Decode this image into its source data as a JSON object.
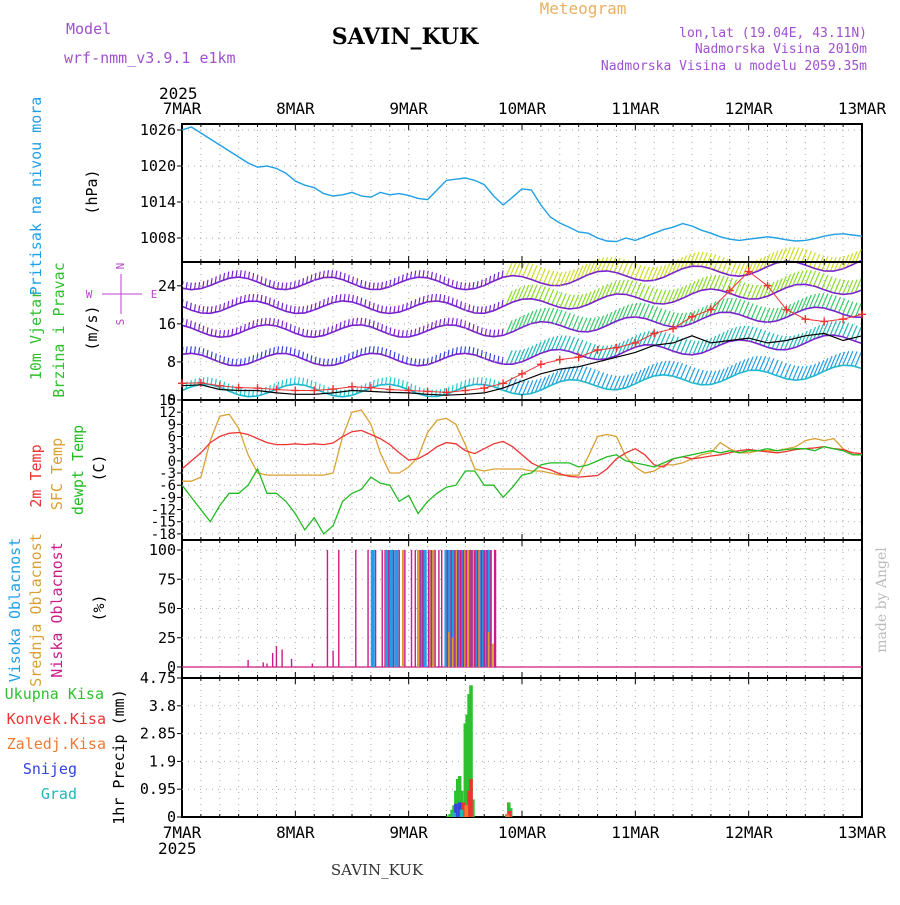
{
  "header": {
    "model_label": "Model",
    "model_name": "wrf-nmm_v3.9.1 e1km",
    "station": "SAVIN_KUK",
    "meteogram": "Meteogram",
    "lonlat": "lon,lat (19.04E, 43.11N)",
    "elevation": "Nadmorska Visina 2010m",
    "elevation_model": "Nadmorska Visina u modelu 2059.35m"
  },
  "time_axis": {
    "year": "2025",
    "labels": [
      "7MAR",
      "8MAR",
      "9MAR",
      "10MAR",
      "11MAR",
      "12MAR",
      "13MAR"
    ]
  },
  "footer": {
    "station": "SAVIN_KUK",
    "credit": "made by Angel"
  },
  "colors": {
    "pressure": "#1fa0e6",
    "temp2m": "#ee3333",
    "sfc": "#d9a033",
    "dew": "#22bb22",
    "visoka": "#1f9fe6",
    "srednja": "#d9a033",
    "niska": "#cc1a88",
    "ukupna": "#2ec02e",
    "konvek": "#ee3333",
    "zaledj": "#f07a30",
    "snijeg": "#3344dd",
    "grad": "#1fb8b8",
    "wind_compass": "#bb44cc",
    "header_purple": "#a050d0",
    "header_orange": "#e8b060"
  },
  "panels": {
    "pressure": {
      "label": "Pritisak na nivou mora",
      "unit": "(hPa)",
      "ticks": [
        "1026",
        "1020",
        "1014",
        "1008"
      ]
    },
    "wind": {
      "label1": "10m Vjetar",
      "label2": "Brzina i Pravac",
      "unit": "(m/s)",
      "ticks": [
        "24",
        "16",
        "8",
        "0"
      ],
      "compass": [
        "N",
        "S",
        "W",
        "E"
      ]
    },
    "temp": {
      "label1": "2m Temp",
      "label2": "SFC Temp",
      "label3": "dewpt Temp",
      "unit": "(C)",
      "ticks": [
        "15",
        "12",
        "9",
        "6",
        "3",
        "0",
        "-3",
        "-6",
        "-9",
        "-12",
        "-15",
        "-18"
      ]
    },
    "cloud": {
      "label1": "Visoka Oblacnost",
      "label2": "Srednja Oblacnost",
      "label3": "Niska Oblacnost",
      "unit": "(%)",
      "ticks": [
        "100",
        "75",
        "50",
        "25",
        "0"
      ]
    },
    "precip": {
      "labels": [
        "Ukupna Kisa",
        "Konvek.Kisa",
        "Zaledj.Kisa",
        "Snijeg",
        "Grad"
      ],
      "axis_label": "1hr Precip (mm)",
      "ticks": [
        "4.75",
        "3.8",
        "2.85",
        "1.9",
        "0.95",
        "0"
      ]
    }
  },
  "chart_data": [
    {
      "type": "line",
      "panel": "pressure",
      "ylabel": "(hPa)",
      "ylim": [
        1004,
        1027
      ],
      "x": [
        0,
        0.5,
        1,
        1.5,
        2,
        2.5,
        3,
        3.5,
        4,
        4.5,
        5,
        5.5,
        6,
        6.5,
        7,
        7.5,
        8,
        8.5,
        9,
        9.5,
        10,
        10.5,
        11,
        11.5,
        12,
        12.5,
        13,
        13.5,
        14,
        14.5,
        15,
        15.5,
        16,
        16.5,
        17,
        17.5,
        18,
        18.5,
        19,
        19.5,
        20,
        20.5,
        21,
        21.5,
        22,
        22.5,
        23,
        23.5,
        24,
        24.5,
        25,
        25.5,
        26,
        26.5,
        27,
        27.5,
        28,
        28.5,
        29,
        29.5,
        30,
        30.5,
        31,
        31.5,
        32,
        32.5,
        33,
        33.5,
        34,
        34.5,
        35,
        35.5,
        36
      ],
      "series": [
        {
          "values": [
            1026.0,
            1026.5,
            1025.5,
            1024.5,
            1023.5,
            1022.5,
            1021.5,
            1020.5,
            1019.8,
            1020.0,
            1019.6,
            1018.8,
            1017.5,
            1016.8,
            1016.4,
            1015.4,
            1015.0,
            1015.2,
            1015.6,
            1015.0,
            1014.8,
            1015.6,
            1015.2,
            1015.4,
            1015.1,
            1014.6,
            1014.4,
            1016.0,
            1017.6,
            1017.8,
            1018.0,
            1017.6,
            1016.9,
            1015.0,
            1013.5,
            1014.8,
            1016.2,
            1016.0,
            1013.5,
            1011.5,
            1010.5,
            1009.8,
            1009.0,
            1008.8,
            1008.0,
            1007.5,
            1007.4,
            1008.0,
            1007.6,
            1008.2,
            1008.8,
            1009.4,
            1009.8,
            1010.4,
            1010.0,
            1009.3,
            1008.8,
            1008.2,
            1007.8,
            1007.6,
            1007.8,
            1008.0,
            1008.2,
            1008.0,
            1007.7,
            1007.5,
            1007.6,
            1007.9,
            1008.3,
            1008.6,
            1008.7,
            1008.5,
            1008.3
          ]
        }
      ]
    },
    {
      "type": "line",
      "panel": "wind",
      "ylabel": "(m/s)",
      "ylim": [
        0,
        29
      ],
      "x": [
        0,
        1,
        2,
        3,
        4,
        5,
        6,
        7,
        8,
        9,
        10,
        11,
        12,
        13,
        14,
        15,
        16,
        17,
        18,
        19,
        20,
        21,
        22,
        23,
        24,
        25,
        26,
        27,
        28,
        29,
        30,
        31,
        32,
        33,
        34,
        35,
        36
      ],
      "series": [
        {
          "values": [
            3.0,
            3.2,
            2.2,
            2.0,
            2.0,
            1.5,
            1.2,
            1.2,
            1.5,
            2.0,
            1.8,
            1.6,
            1.5,
            1.2,
            1.0,
            1.2,
            1.5,
            2.5,
            4.0,
            5.5,
            6.5,
            7.0,
            8.0,
            9.0,
            10.0,
            11.5,
            12.0,
            13.5,
            12.0,
            12.5,
            13.0,
            12.0,
            12.5,
            13.5,
            14.0,
            12.5,
            13.5
          ]
        },
        {
          "values": [
            3.5,
            3.6,
            3.0,
            2.6,
            2.5,
            2.2,
            2.0,
            2.0,
            2.3,
            2.8,
            2.6,
            2.2,
            2.0,
            1.8,
            1.6,
            2.0,
            2.5,
            3.5,
            5.5,
            7.5,
            8.5,
            9.0,
            10.5,
            11.0,
            12.0,
            14.0,
            15.0,
            17.5,
            19.0,
            23.0,
            27.0,
            24.0,
            19.0,
            17.0,
            16.5,
            17.0,
            18.0
          ]
        }
      ]
    },
    {
      "type": "line",
      "panel": "temp",
      "ylabel": "(C)",
      "ylim": [
        -19.5,
        15
      ],
      "x": [
        0,
        0.5,
        1,
        1.5,
        2,
        2.5,
        3,
        3.5,
        4,
        4.5,
        5,
        5.5,
        6,
        6.5,
        7,
        7.5,
        8,
        8.5,
        9,
        9.5,
        10,
        10.5,
        11,
        11.5,
        12,
        12.5,
        13,
        13.5,
        14,
        14.5,
        15,
        15.5,
        16,
        16.5,
        17,
        17.5,
        18,
        18.5,
        19,
        19.5,
        20,
        20.5,
        21,
        21.5,
        22,
        22.5,
        23,
        23.5,
        24,
        24.5,
        25,
        25.5,
        26,
        26.5,
        27,
        27.5,
        28,
        28.5,
        29,
        29.5,
        30,
        30.5,
        31,
        31.5,
        32,
        32.5,
        33,
        33.5,
        34,
        34.5,
        35,
        35.5,
        36
      ],
      "series": [
        {
          "values": [
            -2,
            0,
            2,
            4.5,
            6,
            6.8,
            7,
            6.5,
            5.5,
            4.5,
            4,
            4,
            4.2,
            4.0,
            4.2,
            4.0,
            4.4,
            6,
            7.2,
            7.5,
            6.5,
            5.5,
            4,
            2,
            0.2,
            0.5,
            1.8,
            3.5,
            4.5,
            4.2,
            2.5,
            1.8,
            3,
            4.2,
            4.8,
            3.5,
            1.5,
            -0.5,
            -1.6,
            -2.2,
            -3.2,
            -3.8,
            -4,
            -3.8,
            -3.6,
            -2,
            0.5,
            2,
            3,
            1.5,
            -1,
            -1.5,
            0.5,
            1,
            0.5,
            0.8,
            1.2,
            1.5,
            2,
            2.5,
            2.8,
            2.5,
            2.2,
            2.0,
            2.3,
            2.8,
            3.0,
            3.2,
            3.5,
            3.0,
            2.8,
            2.0,
            1.8
          ]
        },
        {
          "values": [
            -5,
            -5,
            -4,
            5,
            11,
            11.5,
            8,
            1.5,
            -3,
            -3.5,
            -3.5,
            -3.5,
            -3.5,
            -3.5,
            -3.5,
            -3.5,
            -3,
            6,
            12,
            12.5,
            9,
            2,
            -3,
            -3,
            -1.5,
            1,
            7,
            10,
            10.5,
            9,
            4,
            -2,
            -2.5,
            -2,
            -2,
            -2,
            -2,
            -2.5,
            -2.5,
            -3,
            -3.5,
            -3.5,
            -3.5,
            1,
            6,
            6.5,
            6,
            1,
            -1.5,
            -3,
            -2.5,
            -1,
            -1,
            -0.5,
            0.5,
            1.5,
            2,
            4.5,
            3,
            2,
            2,
            2.5,
            2.5,
            2.5,
            3,
            3.5,
            5,
            5.5,
            5,
            5.5,
            3,
            1.5,
            1.5
          ]
        },
        {
          "values": [
            -6,
            -9,
            -12,
            -15,
            -11,
            -8,
            -8,
            -6,
            -2,
            -8,
            -8,
            -10,
            -13,
            -17,
            -14,
            -18,
            -16,
            -10,
            -8,
            -7,
            -4,
            -5.5,
            -6,
            -10,
            -8.5,
            -13,
            -10,
            -8,
            -6.5,
            -6,
            -2.5,
            -2.5,
            -6,
            -6,
            -9,
            -6.5,
            -3.5,
            -3,
            -1,
            -0.5,
            -0.5,
            -0.5,
            -1.5,
            -1,
            0,
            1,
            1.5,
            0,
            -0.5,
            -1,
            -1.5,
            -0.5,
            0.5,
            1,
            1.5,
            2,
            2.5,
            2,
            2.5,
            2,
            2.5,
            2.5,
            3,
            2.5,
            2.8,
            3.0,
            3.0,
            2.5,
            3.5,
            3.0,
            2.5,
            1.5,
            1.5
          ]
        }
      ]
    },
    {
      "type": "bar",
      "panel": "cloud",
      "ylabel": "(%)",
      "ylim": [
        0,
        100
      ],
      "series": [
        {
          "name": "Visoka Oblacnost",
          "x": [
            10.1,
            10.9,
            11.1,
            11.35,
            12.7,
            12.85,
            13.25,
            14.0,
            14.2,
            14.4,
            14.55,
            14.7,
            14.85,
            15.0,
            15.1,
            15.2,
            15.3,
            15.4,
            15.5,
            15.6,
            15.8,
            15.95,
            16.1,
            16.3
          ],
          "values": [
            100,
            100,
            100,
            100,
            100,
            100,
            100,
            100,
            100,
            100,
            100,
            100,
            100,
            100,
            100,
            100,
            100,
            100,
            100,
            100,
            100,
            100,
            100,
            100
          ]
        },
        {
          "name": "Srednja Oblacnost",
          "x": [
            11.7,
            12.5,
            13.1,
            13.3,
            14.1,
            14.3,
            14.5,
            14.95,
            15.15,
            15.45,
            15.7,
            16.2,
            16.45
          ],
          "values": [
            100,
            100,
            100,
            100,
            30,
            25,
            100,
            100,
            100,
            100,
            100,
            30,
            20
          ]
        },
        {
          "name": "Niska Oblacnost",
          "x": [
            3.5,
            4.3,
            4.5,
            4.8,
            5.0,
            5.3,
            5.8,
            6.9,
            7.7,
            8.0,
            8.3,
            9.2,
            9.85,
            10.25,
            10.6,
            10.75,
            10.95,
            11.2,
            11.5,
            11.8,
            12.15,
            12.35,
            12.6,
            12.75,
            13.05,
            13.2,
            13.4,
            13.6,
            13.75,
            14.05,
            14.25,
            14.45,
            14.6,
            14.75,
            14.9,
            15.05,
            15.25,
            15.35,
            15.5,
            15.65,
            15.85,
            16.0,
            16.15,
            16.35,
            16.55,
            16.6
          ],
          "values": [
            6,
            4,
            3,
            12,
            18,
            15,
            7,
            3,
            100,
            14,
            100,
            100,
            100,
            100,
            100,
            100,
            100,
            100,
            100,
            100,
            100,
            100,
            100,
            100,
            100,
            100,
            100,
            100,
            100,
            100,
            100,
            100,
            100,
            100,
            100,
            100,
            100,
            100,
            100,
            100,
            100,
            100,
            100,
            100,
            100,
            100
          ]
        }
      ]
    },
    {
      "type": "bar",
      "panel": "precip",
      "ylabel": "1hr Precip (mm)",
      "ylim": [
        0,
        4.75
      ],
      "series": [
        {
          "name": "Ukupna Kisa",
          "x": [
            14.1,
            14.2,
            14.3,
            14.4,
            14.5,
            14.6,
            14.7,
            14.8,
            14.9,
            15.0,
            15.1,
            15.2,
            15.3,
            15.4,
            17.2,
            17.3,
            17.4
          ],
          "values": [
            0.05,
            0.1,
            0.25,
            0.4,
            0.9,
            1.3,
            1.4,
            0.9,
            0.2,
            3.2,
            3.5,
            4.2,
            4.5,
            0.6,
            0.1,
            0.5,
            0.3
          ]
        },
        {
          "name": "Konvek.Kisa",
          "x": [
            14.9,
            15.2,
            15.3,
            17.35
          ],
          "values": [
            0.5,
            0.9,
            1.3,
            0.2
          ]
        },
        {
          "name": "Zaledj.Kisa",
          "x": [
            14.6,
            15.05,
            17.25
          ],
          "values": [
            0.2,
            0.4,
            0.1
          ]
        },
        {
          "name": "Snijeg",
          "x": [
            14.5,
            14.7
          ],
          "values": [
            0.45,
            0.5
          ]
        },
        {
          "name": "Grad",
          "x": [
            14.4,
            14.8
          ],
          "values": [
            0.15,
            0.25
          ]
        }
      ]
    }
  ]
}
